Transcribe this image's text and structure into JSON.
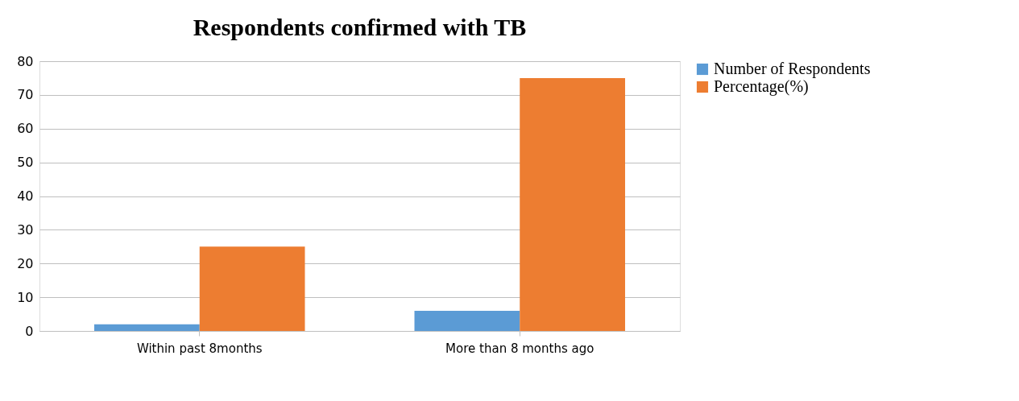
{
  "chart_data": {
    "type": "bar",
    "title": "Respondents confirmed with TB",
    "categories": [
      "Within past 8months",
      "More than 8 months ago"
    ],
    "series": [
      {
        "name": "Number of Respondents",
        "color": "#5b9bd5",
        "values": [
          2,
          6
        ]
      },
      {
        "name": "Percentage(%)",
        "color": "#ed7d31",
        "values": [
          25,
          75
        ]
      }
    ],
    "ylim": [
      0,
      80
    ],
    "yticks": [
      0,
      10,
      20,
      30,
      40,
      50,
      60,
      70,
      80
    ],
    "grid": "y",
    "legend": "right"
  }
}
